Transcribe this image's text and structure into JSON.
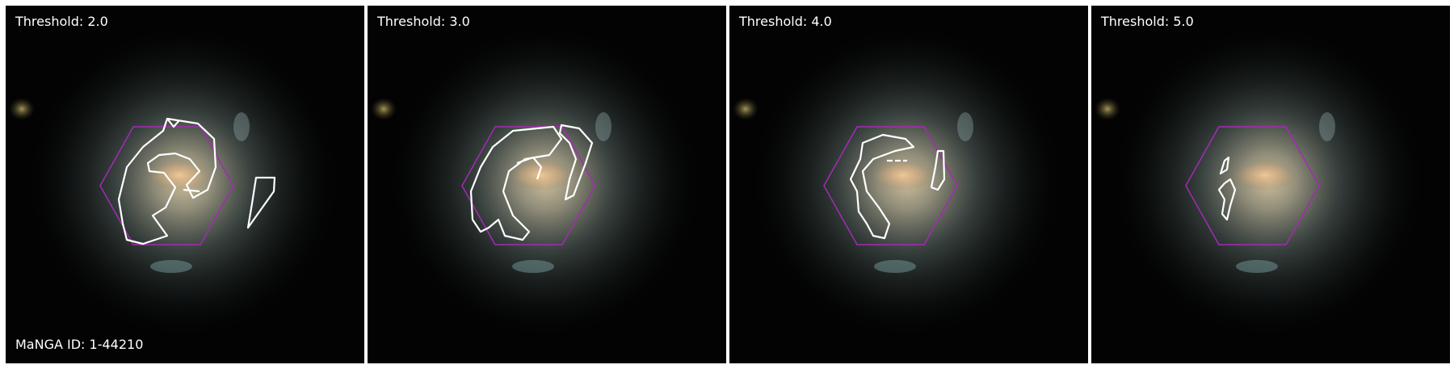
{
  "figure": {
    "manga_id_label": "MaNGA ID: 1-44210",
    "colors": {
      "hexagon": "#a52ab4",
      "contour": "#ffffff",
      "label_text": "#ffffff",
      "background": "#030303"
    },
    "panels": [
      {
        "title": "Threshold: 2.0"
      },
      {
        "title": "Threshold: 3.0"
      },
      {
        "title": "Threshold: 4.0"
      },
      {
        "title": "Threshold: 5.0"
      }
    ]
  }
}
